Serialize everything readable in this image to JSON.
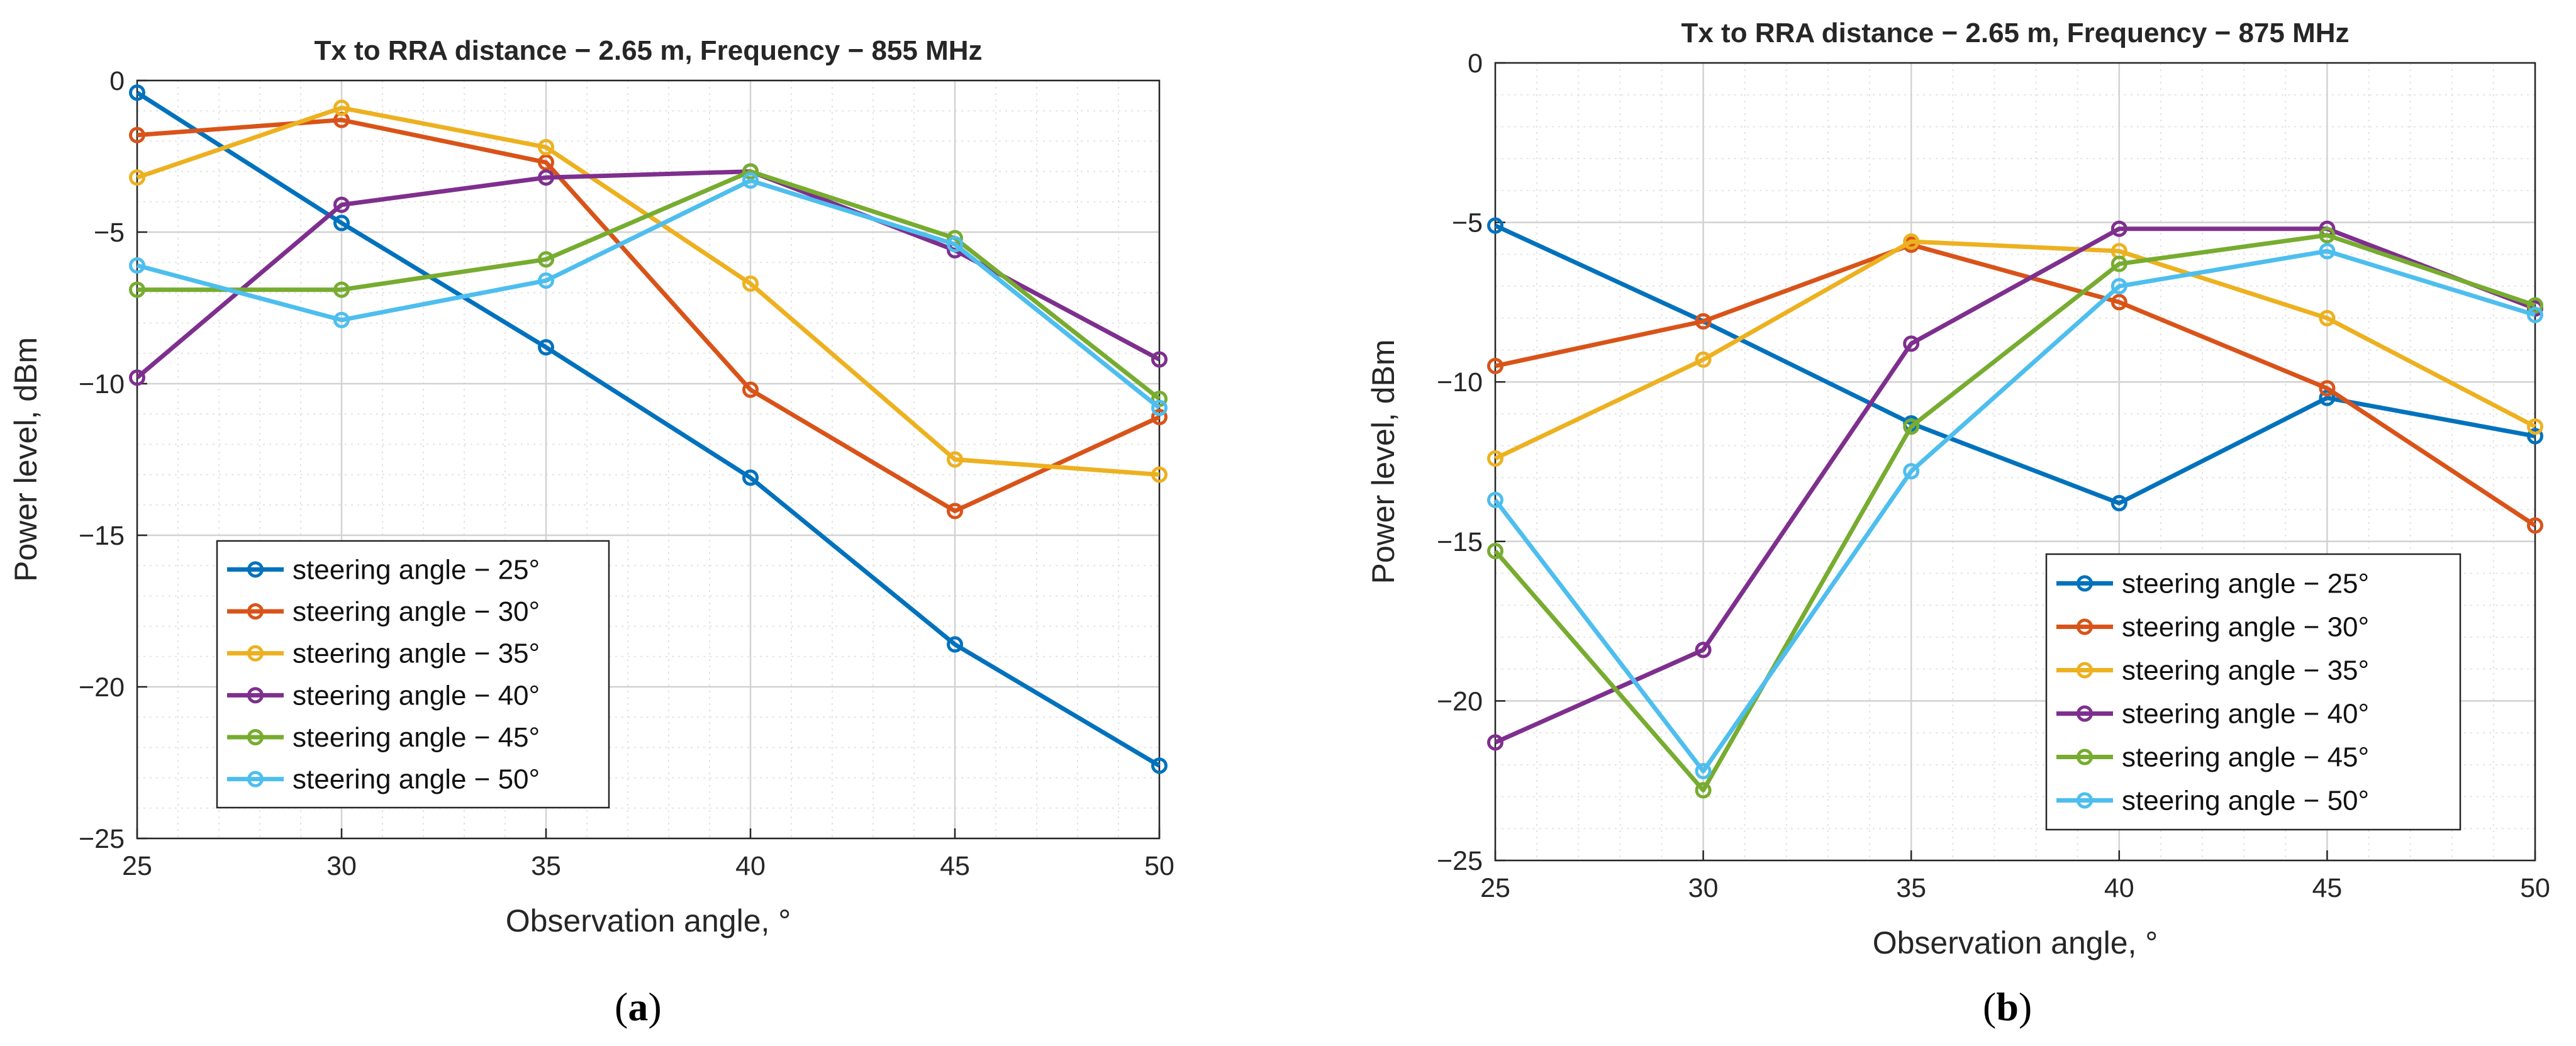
{
  "chart_data": [
    {
      "type": "line",
      "panel": "a",
      "caption_open": "(",
      "caption_letter": "a",
      "caption_close": ")",
      "title": "Tx to RRA distance − 2.65 m, Frequency − 855 MHz",
      "xlabel": "Observation angle, °",
      "ylabel": "Power level, dBm",
      "xlim": [
        25,
        50
      ],
      "ylim": [
        -25,
        0
      ],
      "xticks": [
        25,
        30,
        35,
        40,
        45,
        50
      ],
      "yticks": [
        0,
        -5,
        -10,
        -15,
        -20,
        -25
      ],
      "ytick_labels": [
        "0",
        "−5",
        "−10",
        "−15",
        "−20",
        "−25"
      ],
      "grid": true,
      "legend_position": "bottom-left",
      "x": [
        25,
        30,
        35,
        40,
        45,
        50
      ],
      "series": [
        {
          "name": "steering angle − 25°",
          "color": "#0072BD",
          "values": [
            -0.4,
            -4.7,
            -8.8,
            -13.1,
            -18.6,
            -22.6
          ]
        },
        {
          "name": "steering angle − 30°",
          "color": "#D95319",
          "values": [
            -1.8,
            -1.3,
            -2.7,
            -10.2,
            -14.2,
            -11.1
          ]
        },
        {
          "name": "steering angle − 35°",
          "color": "#EDB120",
          "values": [
            -3.2,
            -0.9,
            -2.2,
            -6.7,
            -12.5,
            -13.0
          ]
        },
        {
          "name": "steering angle − 40°",
          "color": "#7E2F8E",
          "values": [
            -9.8,
            -4.1,
            -3.2,
            -3.0,
            -5.6,
            -9.2
          ]
        },
        {
          "name": "steering angle − 45°",
          "color": "#77AC30",
          "values": [
            -6.9,
            -6.9,
            -5.9,
            -3.0,
            -5.2,
            -10.5
          ]
        },
        {
          "name": "steering angle − 50°",
          "color": "#4DBEEE",
          "values": [
            -6.1,
            -7.9,
            -6.6,
            -3.3,
            -5.4,
            -10.8
          ]
        }
      ]
    },
    {
      "type": "line",
      "panel": "b",
      "caption_open": "(",
      "caption_letter": "b",
      "caption_close": ")",
      "title": "Tx to RRA distance − 2.65 m, Frequency − 875 MHz",
      "xlabel": "Observation angle, °",
      "ylabel": "Power level, dBm",
      "xlim": [
        25,
        50
      ],
      "ylim": [
        -25,
        0
      ],
      "xticks": [
        25,
        30,
        35,
        40,
        45,
        50
      ],
      "yticks": [
        0,
        -5,
        -10,
        -15,
        -20,
        -25
      ],
      "ytick_labels": [
        "0",
        "−5",
        "−10",
        "−15",
        "−20",
        "−25"
      ],
      "grid": true,
      "legend_position": "bottom-right",
      "x": [
        25,
        30,
        35,
        40,
        45,
        50
      ],
      "series": [
        {
          "name": "steering angle − 25°",
          "color": "#0072BD",
          "values": [
            -5.1,
            -8.1,
            -11.3,
            -13.8,
            -10.5,
            -11.7
          ]
        },
        {
          "name": "steering angle − 30°",
          "color": "#D95319",
          "values": [
            -9.5,
            -8.1,
            -5.7,
            -7.5,
            -10.2,
            -14.5
          ]
        },
        {
          "name": "steering angle − 35°",
          "color": "#EDB120",
          "values": [
            -12.4,
            -9.3,
            -5.6,
            -5.9,
            -8.0,
            -11.4
          ]
        },
        {
          "name": "steering angle − 40°",
          "color": "#7E2F8E",
          "values": [
            -21.3,
            -18.4,
            -8.8,
            -5.2,
            -5.2,
            -7.7
          ]
        },
        {
          "name": "steering angle − 45°",
          "color": "#77AC30",
          "values": [
            -15.3,
            -22.8,
            -11.4,
            -6.3,
            -5.4,
            -7.6
          ]
        },
        {
          "name": "steering angle − 50°",
          "color": "#4DBEEE",
          "values": [
            -13.7,
            -22.2,
            -12.8,
            -7.0,
            -5.9,
            -7.9
          ]
        }
      ]
    }
  ]
}
